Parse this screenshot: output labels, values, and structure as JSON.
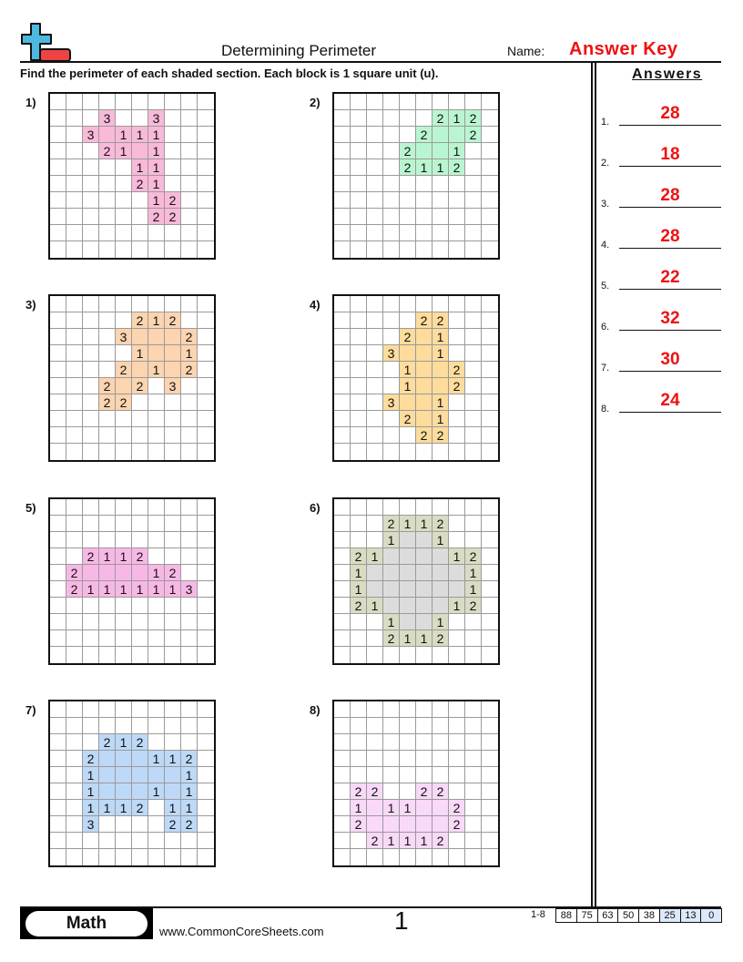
{
  "header": {
    "title": "Determining Perimeter",
    "name_label": "Name:",
    "name_value": "Answer Key",
    "instructions": "Find the perimeter of each shaded section. Each block is 1 square unit (u)."
  },
  "answers": {
    "heading": "Answers",
    "items": [
      {
        "num": "1.",
        "value": "28"
      },
      {
        "num": "2.",
        "value": "18"
      },
      {
        "num": "3.",
        "value": "28"
      },
      {
        "num": "4.",
        "value": "28"
      },
      {
        "num": "5.",
        "value": "22"
      },
      {
        "num": "6.",
        "value": "32"
      },
      {
        "num": "7.",
        "value": "30"
      },
      {
        "num": "8.",
        "value": "24"
      }
    ]
  },
  "problems": [
    {
      "label": "1)",
      "fill": "#f9b9d9",
      "fill_blank": "#f9b9d9",
      "rows": [
        "..........",
        "...3..3...",
        "..3#111...",
        "...21#1...",
        ".....11...",
        ".....21...",
        "......12..",
        "......22..",
        "..........",
        ".........."
      ]
    },
    {
      "label": "2)",
      "fill": "#baf5d2",
      "fill_blank": "#baf5d2",
      "rows": [
        "..........",
        "......212.",
        ".....2##2.",
        "....2##1..",
        "....2112..",
        "..........",
        "..........",
        "..........",
        "..........",
        ".........."
      ]
    },
    {
      "label": "3)",
      "fill": "#fcd4b0",
      "fill_blank": "#fcd4b0",
      "rows": [
        "..........",
        ".....212..",
        "....3###2.",
        ".....1##1.",
        "....2#1#2.",
        "...2#2.3..",
        "...22.....",
        "..........",
        "..........",
        ".........."
      ]
    },
    {
      "label": "4)",
      "fill": "#fddc9c",
      "fill_blank": "#fddc9c",
      "rows": [
        "..........",
        ".....22...",
        "....2#1...",
        "...3##1...",
        "....1##2..",
        "....1##2..",
        "...3##1...",
        "....2#1...",
        ".....22...",
        ".........."
      ]
    },
    {
      "label": "5)",
      "fill": "#f8b8e6",
      "fill_blank": "#f8b8e6",
      "rows": [
        "..........",
        "..........",
        "..........",
        "..2112....",
        ".2####12..",
        ".21111113.",
        "..........",
        "..........",
        "..........",
        ".........."
      ]
    },
    {
      "label": "6)",
      "fill": "#d9dcc2",
      "fill_blank": "#dcdcdc",
      "rows": [
        "..........",
        "...2112...",
        "...1##1...",
        ".21####12.",
        ".1######1.",
        ".1######1.",
        ".21####12.",
        "...1##1...",
        "...2112...",
        ".........."
      ]
    },
    {
      "label": "7)",
      "fill": "#bdd9f7",
      "fill_blank": "#bdd9f7",
      "rows": [
        "..........",
        "..........",
        "...212....",
        "..2###112.",
        "..1#####1.",
        "..1###1#1.",
        "..1112.11.",
        "..3....22.",
        "..........",
        ".........."
      ]
    },
    {
      "label": "8)",
      "fill": "#f8d9f8",
      "fill_blank": "#f8d9f8",
      "rows": [
        "..........",
        "..........",
        "..........",
        "..........",
        "..........",
        ".22..22...",
        ".1#11##2..",
        ".2#####2..",
        "..21112...",
        ".........."
      ]
    }
  ],
  "footer": {
    "subject": "Math",
    "website": "www.CommonCoreSheets.com",
    "page_number": "1",
    "range_label": "1-8",
    "scores": [
      "88",
      "75",
      "63",
      "50",
      "38",
      "25",
      "13",
      "0"
    ],
    "score_highlight_color": "#dde8fb"
  },
  "colors": {
    "accent_red": "#ee1111",
    "logo_blue": "#4fb8de",
    "logo_red": "#ee4444"
  }
}
